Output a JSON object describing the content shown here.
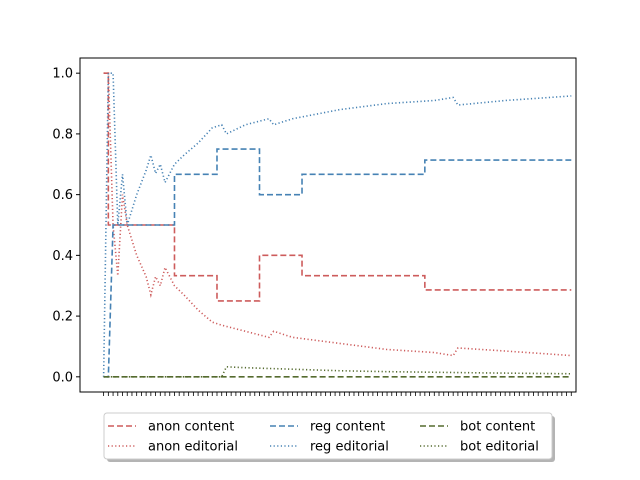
{
  "chart_data": {
    "type": "line",
    "title": "",
    "xlabel": "",
    "ylabel": "",
    "xlim": [
      -5,
      100
    ],
    "ylim": [
      -0.05,
      1.05
    ],
    "x_tick_labels": "none",
    "yticks": [
      "0.0",
      "0.2",
      "0.4",
      "0.6",
      "0.8",
      "1.0"
    ],
    "grid": false,
    "legend": {
      "placement": "below-center",
      "columns": 3
    },
    "series": [
      {
        "name": "anon content",
        "color": "#cd5c5c",
        "style": "dashed",
        "points": [
          [
            0,
            1
          ],
          [
            1,
            1
          ],
          [
            1,
            0.5
          ],
          [
            15,
            0.5
          ],
          [
            15,
            0.333
          ],
          [
            24,
            0.333
          ],
          [
            24,
            0.25
          ],
          [
            33,
            0.25
          ],
          [
            33,
            0.4
          ],
          [
            42,
            0.4
          ],
          [
            42,
            0.333
          ],
          [
            68,
            0.333
          ],
          [
            68,
            0.286
          ],
          [
            99,
            0.286
          ]
        ]
      },
      {
        "name": "anon editorial",
        "color": "#cd5c5c",
        "style": "dotted",
        "points": [
          [
            0,
            1
          ],
          [
            1,
            1
          ],
          [
            2,
            0.5
          ],
          [
            3,
            0.333
          ],
          [
            4,
            0.6
          ],
          [
            5,
            0.5
          ],
          [
            7,
            0.4
          ],
          [
            9,
            0.33
          ],
          [
            10,
            0.27
          ],
          [
            11,
            0.33
          ],
          [
            12,
            0.3
          ],
          [
            13,
            0.36
          ],
          [
            15,
            0.3
          ],
          [
            17,
            0.27
          ],
          [
            20,
            0.22
          ],
          [
            23,
            0.18
          ],
          [
            25,
            0.17
          ],
          [
            30,
            0.15
          ],
          [
            35,
            0.13
          ],
          [
            36,
            0.15
          ],
          [
            40,
            0.13
          ],
          [
            50,
            0.11
          ],
          [
            60,
            0.09
          ],
          [
            70,
            0.08
          ],
          [
            74,
            0.07
          ],
          [
            75,
            0.095
          ],
          [
            85,
            0.085
          ],
          [
            99,
            0.07
          ]
        ]
      },
      {
        "name": "reg content",
        "color": "#4682b4",
        "style": "dashed",
        "points": [
          [
            0,
            0
          ],
          [
            1,
            0
          ],
          [
            2,
            0.5
          ],
          [
            15,
            0.5
          ],
          [
            15,
            0.667
          ],
          [
            24,
            0.667
          ],
          [
            24,
            0.75
          ],
          [
            33,
            0.75
          ],
          [
            33,
            0.6
          ],
          [
            42,
            0.6
          ],
          [
            42,
            0.667
          ],
          [
            68,
            0.667
          ],
          [
            68,
            0.714
          ],
          [
            99,
            0.714
          ]
        ]
      },
      {
        "name": "reg editorial",
        "color": "#4682b4",
        "style": "dotted",
        "points": [
          [
            0,
            0
          ],
          [
            1,
            1
          ],
          [
            2,
            1
          ],
          [
            3,
            0.5
          ],
          [
            4,
            0.667
          ],
          [
            5,
            0.5
          ],
          [
            7,
            0.6
          ],
          [
            9,
            0.68
          ],
          [
            10,
            0.73
          ],
          [
            11,
            0.67
          ],
          [
            12,
            0.7
          ],
          [
            13,
            0.64
          ],
          [
            15,
            0.7
          ],
          [
            17,
            0.73
          ],
          [
            20,
            0.77
          ],
          [
            23,
            0.82
          ],
          [
            25,
            0.83
          ],
          [
            26,
            0.8
          ],
          [
            30,
            0.83
          ],
          [
            35,
            0.85
          ],
          [
            36,
            0.83
          ],
          [
            40,
            0.85
          ],
          [
            50,
            0.88
          ],
          [
            60,
            0.9
          ],
          [
            70,
            0.91
          ],
          [
            74,
            0.92
          ],
          [
            75,
            0.895
          ],
          [
            85,
            0.91
          ],
          [
            99,
            0.925
          ]
        ]
      },
      {
        "name": "bot content",
        "color": "#556b2f",
        "style": "dashed",
        "points": [
          [
            0,
            0
          ],
          [
            99,
            0
          ]
        ]
      },
      {
        "name": "bot editorial",
        "color": "#556b2f",
        "style": "dotted",
        "points": [
          [
            0,
            0
          ],
          [
            25,
            0
          ],
          [
            26,
            0.033
          ],
          [
            30,
            0.03
          ],
          [
            40,
            0.025
          ],
          [
            50,
            0.02
          ],
          [
            60,
            0.017
          ],
          [
            70,
            0.015
          ],
          [
            80,
            0.013
          ],
          [
            99,
            0.01
          ]
        ]
      }
    ]
  }
}
